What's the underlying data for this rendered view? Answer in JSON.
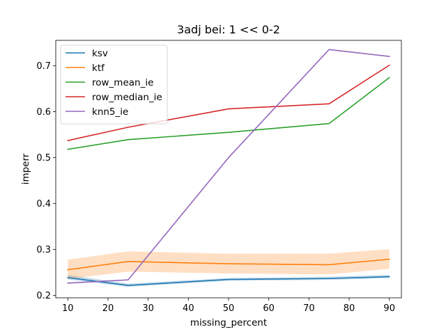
{
  "chart_data": {
    "type": "line",
    "title": "3adj bei: 1 << 0-2",
    "xlabel": "missing_percent",
    "ylabel": "imperr",
    "x": [
      10,
      25,
      50,
      75,
      90
    ],
    "xlim": [
      7,
      93
    ],
    "ylim": [
      0.195,
      0.755
    ],
    "xticks": [
      10,
      20,
      30,
      40,
      50,
      60,
      70,
      80,
      90
    ],
    "yticks": [
      0.2,
      0.3,
      0.4,
      0.5,
      0.6,
      0.7
    ],
    "ytick_labels": [
      "0.2",
      "0.3",
      "0.4",
      "0.5",
      "0.6",
      "0.7"
    ],
    "legend_position": "upper-left",
    "grid": false,
    "series": [
      {
        "name": "ksv",
        "color": "#1f77b4",
        "values": [
          0.239,
          0.222,
          0.235,
          0.237,
          0.241
        ],
        "band_low": [
          0.235,
          0.219,
          0.232,
          0.234,
          0.238
        ],
        "band_high": [
          0.245,
          0.226,
          0.238,
          0.241,
          0.245
        ]
      },
      {
        "name": "ktf",
        "color": "#ff7f0e",
        "values": [
          0.256,
          0.274,
          0.269,
          0.267,
          0.279
        ],
        "band_low": [
          0.236,
          0.252,
          0.248,
          0.246,
          0.258
        ],
        "band_high": [
          0.278,
          0.296,
          0.291,
          0.291,
          0.301
        ]
      },
      {
        "name": "row_mean_ie",
        "color": "#2ca02c",
        "values": [
          0.518,
          0.539,
          0.555,
          0.574,
          0.674
        ]
      },
      {
        "name": "row_median_ie",
        "color": "#d62728",
        "values": [
          0.537,
          0.566,
          0.606,
          0.617,
          0.701
        ]
      },
      {
        "name": "knn5_ie",
        "color": "#9467bd",
        "values": [
          0.227,
          0.234,
          0.5,
          0.735,
          0.72
        ]
      }
    ]
  }
}
